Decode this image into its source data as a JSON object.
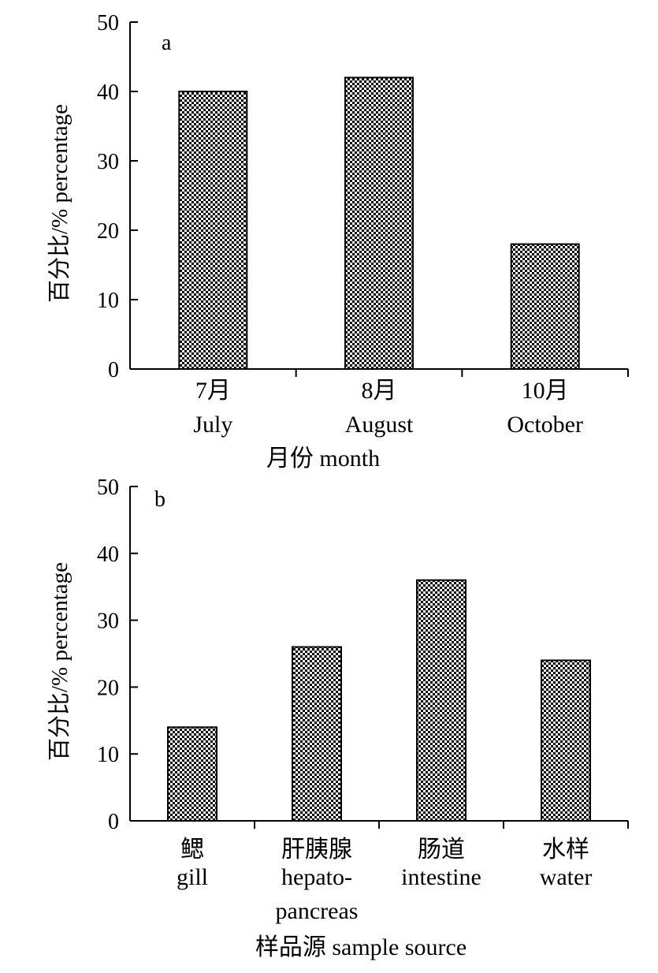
{
  "chart_data": [
    {
      "type": "bar",
      "panel_label": "a",
      "categories": [
        [
          "7月",
          "July"
        ],
        [
          "8月",
          "August"
        ],
        [
          "10月",
          "October"
        ]
      ],
      "values": [
        40,
        42,
        18
      ],
      "xlabel": "月份 month",
      "ylabel": "百分比/% percentage",
      "ylim": [
        0,
        50
      ],
      "yticks": [
        "0",
        "10",
        "20",
        "30",
        "40",
        "50"
      ],
      "grid": false,
      "legend": "none",
      "bar_pattern": "checkered black-white"
    },
    {
      "type": "bar",
      "panel_label": "b",
      "categories": [
        [
          "鳃",
          "gill"
        ],
        [
          "肝胰腺",
          "hepato-",
          "pancreas"
        ],
        [
          "肠道",
          "intestine"
        ],
        [
          "水样",
          "water"
        ]
      ],
      "values": [
        14,
        26,
        36,
        24
      ],
      "xlabel": "样品源 sample source",
      "ylabel": "百分比/% percentage",
      "ylim": [
        0,
        50
      ],
      "yticks": [
        "0",
        "10",
        "20",
        "30",
        "40",
        "50"
      ],
      "grid": false,
      "legend": "none",
      "bar_pattern": "checkered black-white"
    }
  ]
}
